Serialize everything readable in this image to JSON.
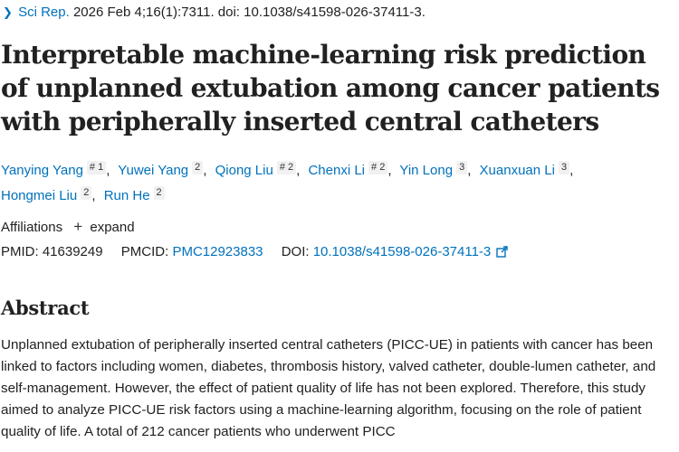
{
  "citation": {
    "journal": "Sci Rep.",
    "details": "2026 Feb 4;16(1):7311. doi: 10.1038/s41598-026-37411-3."
  },
  "title": "Interpretable machine-learning risk prediction of unplanned extubation among cancer patients with peripherally inserted central catheters",
  "authors": [
    {
      "name": "Yanying Yang",
      "sup": "# 1"
    },
    {
      "name": "Yuwei Yang",
      "sup": "2"
    },
    {
      "name": "Qiong Liu",
      "sup": "# 2"
    },
    {
      "name": "Chenxi Li",
      "sup": "# 2"
    },
    {
      "name": "Yin Long",
      "sup": "3"
    },
    {
      "name": "Xuanxuan Li",
      "sup": "3"
    },
    {
      "name": "Hongmei Liu",
      "sup": "2"
    },
    {
      "name": "Run He",
      "sup": "2"
    }
  ],
  "affiliations": {
    "label": "Affiliations",
    "toggle": "expand"
  },
  "identifiers": {
    "pmid_label": "PMID:",
    "pmid": "41639249",
    "pmcid_label": "PMCID:",
    "pmcid": "PMC12923833",
    "doi_label": "DOI:",
    "doi": "10.1038/s41598-026-37411-3"
  },
  "abstract": {
    "heading": "Abstract",
    "text": "Unplanned extubation of peripherally inserted central catheters (PICC-UE) in patients with cancer has been linked to factors including women, diabetes, thrombosis history, valved catheter, double-lumen catheter, and self-management. However, the effect of patient quality of life has not been explored. Therefore, this study aimed to analyze PICC-UE risk factors using a machine-learning algorithm, focusing on the role of patient quality of life. A total of 212 cancer patients who underwent PICC"
  },
  "colors": {
    "link": "#0071bc",
    "text": "#212121",
    "sup_bg": "#f1f1f1"
  },
  "icons": {
    "breadcrumb": "chevron-right-icon",
    "affiliations_toggle": "plus-icon",
    "doi_external": "external-link-icon"
  }
}
